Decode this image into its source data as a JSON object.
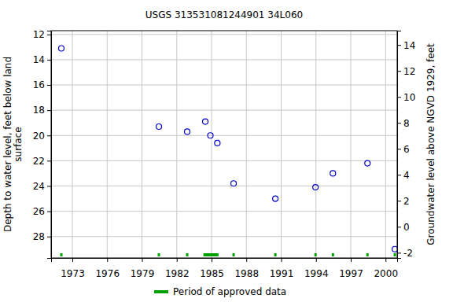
{
  "chart_data": {
    "type": "scatter",
    "title": "USGS 313531081244901 34L060",
    "ylabel": [
      "Depth to water level, feet below land",
      "surface"
    ],
    "y2label": "Groundwater level above NGVD 1929, feet",
    "x": [
      1972.05,
      1980.46,
      1982.9,
      1984.46,
      1984.9,
      1985.5,
      1986.9,
      1990.5,
      1993.96,
      1995.46,
      1998.44,
      2000.8
    ],
    "values": [
      13.1,
      19.3,
      19.7,
      18.9,
      20.0,
      20.6,
      23.8,
      25.0,
      24.1,
      23.0,
      22.2,
      29.0
    ],
    "color": "#0000cc",
    "marker": "circle",
    "xlim": [
      1971.17,
      2001.0
    ],
    "xticks": [
      1973,
      1976,
      1979,
      1982,
      1985,
      1988,
      1991,
      1994,
      1997,
      2000
    ],
    "ylim": [
      29.7,
      11.7
    ],
    "yticks": [
      12,
      14,
      16,
      18,
      20,
      22,
      24,
      26,
      28
    ],
    "y2lim": [
      -2.4,
      15.1
    ],
    "y2ticks": [
      -2,
      0,
      2,
      4,
      6,
      8,
      10,
      12,
      14
    ],
    "grid": true,
    "approved_periods": [
      [
        1971.95,
        1972.15
      ],
      [
        1980.36,
        1980.56
      ],
      [
        1982.8,
        1983.0
      ],
      [
        1984.3,
        1985.6
      ],
      [
        1986.8,
        1987.0
      ],
      [
        1990.4,
        1990.6
      ],
      [
        1993.86,
        1994.06
      ],
      [
        1995.36,
        1995.56
      ],
      [
        1998.34,
        1998.54
      ],
      [
        2000.7,
        2000.9
      ]
    ],
    "approved_color": "#00a000",
    "legend_label": "Period of approved data",
    "legend": "bottom"
  }
}
